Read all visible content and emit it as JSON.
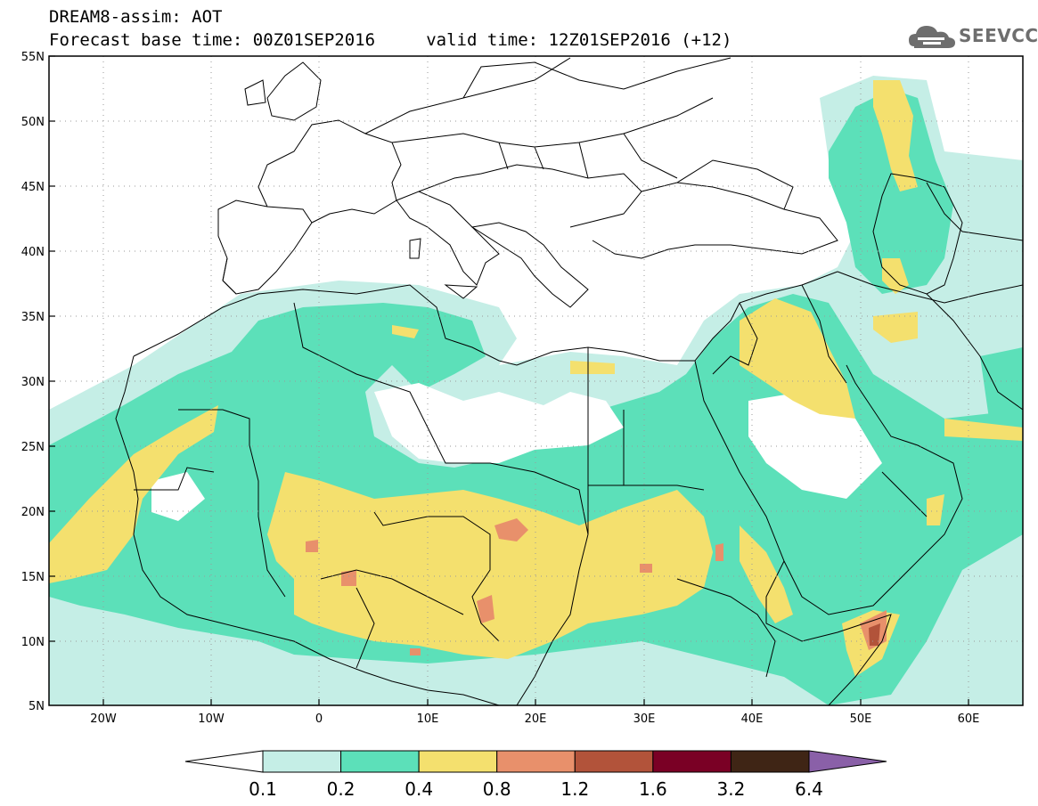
{
  "header": {
    "line1": "DREAM8-assim: AOT",
    "line2": "Forecast base time: 00Z01SEP2016     valid time: 12Z01SEP2016 (+12)"
  },
  "logo": {
    "text": "SEEVCCC",
    "icon": "cloud-icon",
    "color": "#6e6e6e"
  },
  "map": {
    "lat_labels": [
      "55N",
      "50N",
      "45N",
      "40N",
      "35N",
      "30N",
      "25N",
      "20N",
      "15N",
      "10N",
      "5N"
    ],
    "lon_labels": [
      "20W",
      "10W",
      "0",
      "10E",
      "20E",
      "30E",
      "40E",
      "50E",
      "60E"
    ],
    "lon_range": [
      -25,
      65
    ],
    "lat_range": [
      5,
      55
    ],
    "grid": "dotted"
  },
  "colorbar": {
    "labels": [
      "0.1",
      "0.2",
      "0.4",
      "0.8",
      "1.2",
      "1.6",
      "3.2",
      "6.4"
    ],
    "colors": [
      "#ffffff",
      "#c5eee6",
      "#5ce0b9",
      "#f4e06e",
      "#e8906b",
      "#b2533a",
      "#7a0025",
      "#3f2515",
      "#8a60a8"
    ]
  }
}
